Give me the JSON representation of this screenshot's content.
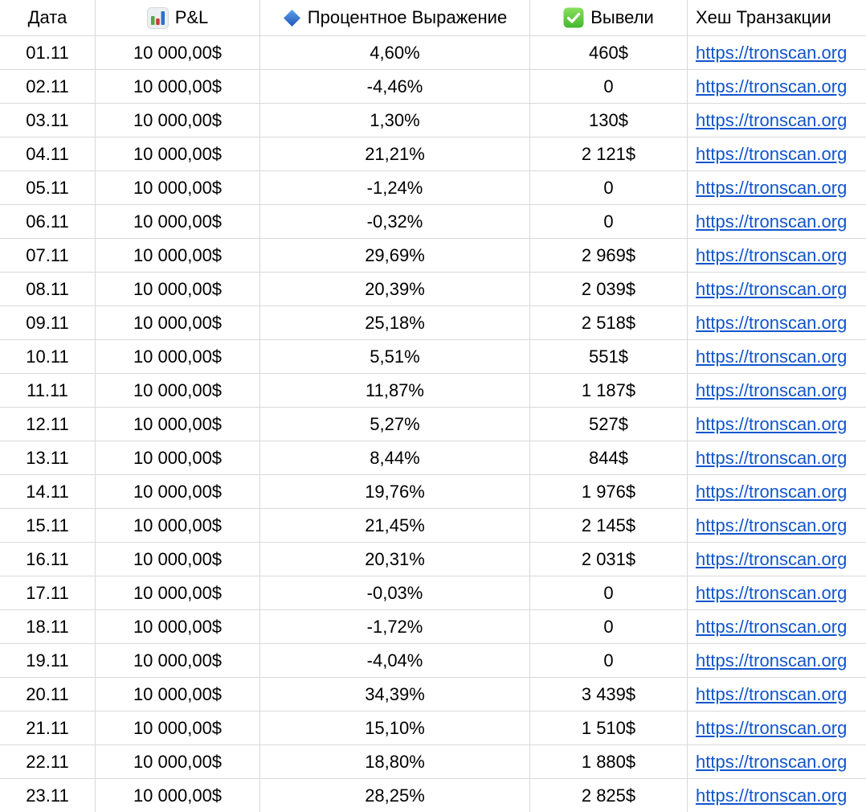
{
  "table": {
    "columns": [
      {
        "label": "Дата",
        "icon": null,
        "align": "center"
      },
      {
        "label": "P&L",
        "icon": "bar-chart",
        "align": "center"
      },
      {
        "label": "Процентное Выражение",
        "icon": "blue-diamond",
        "align": "center"
      },
      {
        "label": "Вывели",
        "icon": "check-mark",
        "align": "center"
      },
      {
        "label": "Хеш Транзакции",
        "icon": null,
        "align": "left"
      }
    ],
    "rows": [
      {
        "date": "01.11",
        "pnl": "10 000,00$",
        "percent": "4,60%",
        "withdrawn": "460$",
        "hash": "https://tronscan.org"
      },
      {
        "date": "02.11",
        "pnl": "10 000,00$",
        "percent": "-4,46%",
        "withdrawn": "0",
        "hash": "https://tronscan.org"
      },
      {
        "date": "03.11",
        "pnl": "10 000,00$",
        "percent": "1,30%",
        "withdrawn": "130$",
        "hash": "https://tronscan.org"
      },
      {
        "date": "04.11",
        "pnl": "10 000,00$",
        "percent": "21,21%",
        "withdrawn": "2 121$",
        "hash": "https://tronscan.org"
      },
      {
        "date": "05.11",
        "pnl": "10 000,00$",
        "percent": "-1,24%",
        "withdrawn": "0",
        "hash": "https://tronscan.org"
      },
      {
        "date": "06.11",
        "pnl": "10 000,00$",
        "percent": "-0,32%",
        "withdrawn": "0",
        "hash": "https://tronscan.org"
      },
      {
        "date": "07.11",
        "pnl": "10 000,00$",
        "percent": "29,69%",
        "withdrawn": "2 969$",
        "hash": "https://tronscan.org"
      },
      {
        "date": "08.11",
        "pnl": "10 000,00$",
        "percent": "20,39%",
        "withdrawn": "2 039$",
        "hash": "https://tronscan.org"
      },
      {
        "date": "09.11",
        "pnl": "10 000,00$",
        "percent": "25,18%",
        "withdrawn": "2 518$",
        "hash": "https://tronscan.org"
      },
      {
        "date": "10.11",
        "pnl": "10 000,00$",
        "percent": "5,51%",
        "withdrawn": "551$",
        "hash": "https://tronscan.org"
      },
      {
        "date": "11.11",
        "pnl": "10 000,00$",
        "percent": "11,87%",
        "withdrawn": "1 187$",
        "hash": "https://tronscan.org"
      },
      {
        "date": "12.11",
        "pnl": "10 000,00$",
        "percent": "5,27%",
        "withdrawn": "527$",
        "hash": "https://tronscan.org"
      },
      {
        "date": "13.11",
        "pnl": "10 000,00$",
        "percent": "8,44%",
        "withdrawn": "844$",
        "hash": "https://tronscan.org"
      },
      {
        "date": "14.11",
        "pnl": "10 000,00$",
        "percent": "19,76%",
        "withdrawn": "1 976$",
        "hash": "https://tronscan.org"
      },
      {
        "date": "15.11",
        "pnl": "10 000,00$",
        "percent": "21,45%",
        "withdrawn": "2 145$",
        "hash": "https://tronscan.org"
      },
      {
        "date": "16.11",
        "pnl": "10 000,00$",
        "percent": "20,31%",
        "withdrawn": "2 031$",
        "hash": "https://tronscan.org"
      },
      {
        "date": "17.11",
        "pnl": "10 000,00$",
        "percent": "-0,03%",
        "withdrawn": "0",
        "hash": "https://tronscan.org"
      },
      {
        "date": "18.11",
        "pnl": "10 000,00$",
        "percent": "-1,72%",
        "withdrawn": "0",
        "hash": "https://tronscan.org"
      },
      {
        "date": "19.11",
        "pnl": "10 000,00$",
        "percent": "-4,04%",
        "withdrawn": "0",
        "hash": "https://tronscan.org"
      },
      {
        "date": "20.11",
        "pnl": "10 000,00$",
        "percent": "34,39%",
        "withdrawn": "3 439$",
        "hash": "https://tronscan.org"
      },
      {
        "date": "21.11",
        "pnl": "10 000,00$",
        "percent": "15,10%",
        "withdrawn": "1 510$",
        "hash": "https://tronscan.org"
      },
      {
        "date": "22.11",
        "pnl": "10 000,00$",
        "percent": "18,80%",
        "withdrawn": "1 880$",
        "hash": "https://tronscan.org"
      },
      {
        "date": "23.11",
        "pnl": "10 000,00$",
        "percent": "28,25%",
        "withdrawn": "2 825$",
        "hash": "https://tronscan.org"
      }
    ]
  },
  "colors": {
    "link": "#1155cc",
    "gridline": "#d9d9d9",
    "text": "#000000",
    "background": "#ffffff",
    "icon_green": "#53a93f",
    "icon_red": "#c63d34",
    "icon_blue": "#2f6fd0",
    "check_green": "#43b72e",
    "diamond_blue": "#1e56bb"
  }
}
